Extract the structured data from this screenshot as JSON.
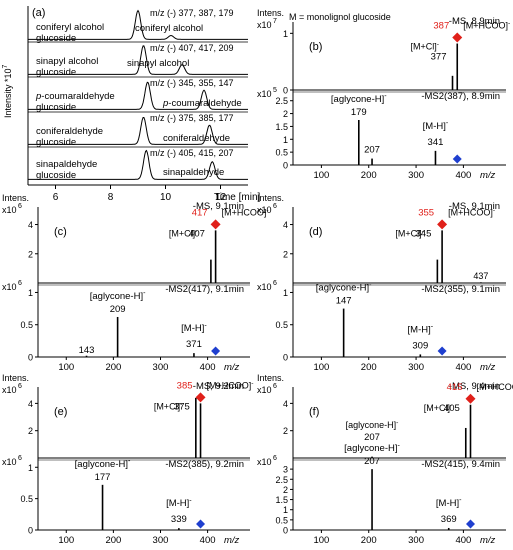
{
  "chart_data": [
    {
      "panel": "(a)",
      "type": "line",
      "ylabel": "Intensity *10",
      "ylabel_exp": "7",
      "xlabel": "Time [min]",
      "xticks": [
        6,
        8,
        10,
        12
      ],
      "xlim": [
        5,
        13
      ],
      "traces": [
        {
          "mz": "m/z (-) 377, 387, 179",
          "labels": [
            "coniferyl alcohol",
            "glucoside",
            "coniferyl alcohol"
          ],
          "peaks": [
            {
              "x": 9.0,
              "h": 0.9
            },
            {
              "x": 10.2,
              "h": 0.12
            }
          ]
        },
        {
          "mz": "m/z (-) 407, 417, 209",
          "labels": [
            "sinapyl alcohol",
            "glucoside",
            "sinapyl alcohol"
          ],
          "peaks": [
            {
              "x": 9.2,
              "h": 0.9
            },
            {
              "x": 10.6,
              "h": 0.3
            }
          ]
        },
        {
          "mz": "m/z (-) 345, 355, 147",
          "labels": [
            "p-coumaraldehyde",
            "glucoside",
            "p-coumaraldehyde"
          ],
          "peaks": [
            {
              "x": 9.35,
              "h": 0.85
            },
            {
              "x": 11.4,
              "h": 0.6
            }
          ]
        },
        {
          "mz": "m/z (-) 375, 385, 177",
          "labels": [
            "coniferaldehyde",
            "glucoside",
            "coniferaldehyde"
          ],
          "peaks": [
            {
              "x": 9.2,
              "h": 0.85
            },
            {
              "x": 11.6,
              "h": 0.6
            }
          ]
        },
        {
          "mz": "m/z (-) 405, 415, 207",
          "labels": [
            "sinapaldehyde",
            "glucoside",
            "sinapaldehyde"
          ],
          "peaks": [
            {
              "x": 9.3,
              "h": 0.9
            },
            {
              "x": 11.7,
              "h": 0.55
            }
          ]
        }
      ]
    },
    {
      "panel": "(b)",
      "type": "bar",
      "note": "M = monolignol  glucoside",
      "intens_label": "Intens.",
      "ms_label": "-MS, 8.9min",
      "ms_exp": "7",
      "ms_yticks": [
        0,
        1
      ],
      "ms_ylim": [
        0,
        1.2
      ],
      "ms_peaks": [
        {
          "x": 377,
          "y": 0.25
        },
        {
          "x": 387,
          "y": 0.82
        }
      ],
      "ms_labels": {
        "mcl": "[M+Cl]-",
        "mcl_mz": "377",
        "mhcoo": "[M+HCOO]-",
        "mhcoo_mz": "387"
      },
      "ms2_label": "-MS2(387), 8.9min",
      "ms2_exp": "5",
      "ms2_yticks": [
        0,
        0.5,
        1,
        1.5,
        2,
        2.5
      ],
      "ms2_ylim": [
        0,
        2.8
      ],
      "ms2_peaks": [
        {
          "x": 179,
          "y": 1.75
        },
        {
          "x": 207,
          "y": 0.25
        },
        {
          "x": 341,
          "y": 0.55
        }
      ],
      "ms2_labels": [
        {
          "text": "[aglycone-H]-",
          "at": 179
        },
        {
          "text": "179",
          "at": 179
        },
        {
          "text": "207",
          "at": 207
        },
        {
          "text": "[M-H]-",
          "at": 341
        },
        {
          "text": "341",
          "at": 341
        }
      ],
      "precursor": 387,
      "xticks": [
        100,
        200,
        300,
        400
      ],
      "xlim": [
        40,
        490
      ],
      "xlabel": "m/z"
    },
    {
      "panel": "(c)",
      "type": "bar",
      "intens_label": "Intens.",
      "ms_label": "-MS, 9.1min",
      "ms_exp": "6",
      "ms_yticks": [
        2,
        4
      ],
      "ms_ylim": [
        0,
        5.2
      ],
      "ms_peaks": [
        {
          "x": 407,
          "y": 1.6
        },
        {
          "x": 417,
          "y": 3.6
        }
      ],
      "ms_labels": {
        "mcl": "[M+Cl]-",
        "mcl_mz": "407",
        "mhcoo": "[M+HCOO]-",
        "mhcoo_mz": "417"
      },
      "ms2_label": "-MS2(417), 9.1min",
      "ms2_exp": "6",
      "ms2_yticks": [
        0,
        0.5,
        1
      ],
      "ms2_ylim": [
        0,
        1.1
      ],
      "ms2_peaks": [
        {
          "x": 143,
          "y": 0.02
        },
        {
          "x": 209,
          "y": 0.62
        },
        {
          "x": 371,
          "y": 0.06
        }
      ],
      "ms2_labels": [
        {
          "text": "[aglycone-H]-",
          "at": 209
        },
        {
          "text": "209",
          "at": 209
        },
        {
          "text": "143",
          "at": 143
        },
        {
          "text": "[M-H]-",
          "at": 371
        },
        {
          "text": "371",
          "at": 371
        }
      ],
      "precursor": 417,
      "xticks": [
        100,
        200,
        300,
        400
      ],
      "xlim": [
        40,
        490
      ],
      "xlabel": "m/z"
    },
    {
      "panel": "(d)",
      "type": "bar",
      "intens_label": "Intens.",
      "ms_label": "-MS, 9.1min",
      "ms_exp": "6",
      "ms_yticks": [
        2,
        4
      ],
      "ms_ylim": [
        0,
        5.2
      ],
      "ms_peaks": [
        {
          "x": 345,
          "y": 1.6
        },
        {
          "x": 355,
          "y": 3.6
        },
        {
          "x": 437,
          "y": 0.05
        }
      ],
      "ms_labels": {
        "mcl": "[M+Cl]-",
        "mcl_mz": "345",
        "mhcoo": "[M+HCOO]-",
        "mhcoo_mz": "355",
        "extra": "437"
      },
      "ms2_label": "-MS2(355), 9.1min",
      "ms2_exp": "6",
      "ms2_yticks": [
        0,
        0.5,
        1
      ],
      "ms2_ylim": [
        0,
        1.1
      ],
      "ms2_peaks": [
        {
          "x": 147,
          "y": 0.75
        },
        {
          "x": 309,
          "y": 0.04
        }
      ],
      "ms2_labels": [
        {
          "text": "[aglycone-H]-",
          "at": 147
        },
        {
          "text": "147",
          "at": 147
        },
        {
          "text": "[M-H]-",
          "at": 309
        },
        {
          "text": "309",
          "at": 309
        }
      ],
      "precursor": 355,
      "xticks": [
        100,
        200,
        300,
        400
      ],
      "xlim": [
        40,
        490
      ],
      "xlabel": "m/z"
    },
    {
      "panel": "(e)",
      "type": "bar",
      "intens_label": "Intens.",
      "ms_label": "-MS, 9.2min",
      "ms_exp": "6",
      "ms_yticks": [
        2,
        4
      ],
      "ms_ylim": [
        0,
        5.2
      ],
      "ms_peaks": [
        {
          "x": 375,
          "y": 4.4
        },
        {
          "x": 385,
          "y": 4.0
        }
      ],
      "ms_labels": {
        "mcl": "[M+Cl]-",
        "mcl_mz": "375",
        "mhcoo": "[M+HCOO]-",
        "mhcoo_mz": "385"
      },
      "ms2_label": "-MS2(385), 9.2min",
      "ms2_exp": "6",
      "ms2_yticks": [
        0,
        0.5,
        1
      ],
      "ms2_ylim": [
        0,
        1.1
      ],
      "ms2_peaks": [
        {
          "x": 177,
          "y": 0.72
        },
        {
          "x": 339,
          "y": 0.03
        }
      ],
      "ms2_labels": [
        {
          "text": "[aglycone-H]-",
          "at": 177
        },
        {
          "text": "177",
          "at": 177
        },
        {
          "text": "[M-H]-",
          "at": 339
        },
        {
          "text": "339",
          "at": 339
        }
      ],
      "precursor": 385,
      "xticks": [
        100,
        200,
        300,
        400
      ],
      "xlim": [
        40,
        490
      ],
      "xlabel": "m/z"
    },
    {
      "panel": "(f)",
      "type": "bar",
      "intens_label": "Intens.",
      "ms_label": "-MS, 9.4min",
      "ms_exp": "6",
      "ms_yticks": [
        2,
        4
      ],
      "ms_ylim": [
        0,
        5.2
      ],
      "ms_peaks": [
        {
          "x": 207,
          "y": 0.1
        },
        {
          "x": 405,
          "y": 2.2
        },
        {
          "x": 415,
          "y": 3.9
        }
      ],
      "ms_labels": {
        "mcl": "[M+Cl]-",
        "mcl_mz": "405",
        "mhcoo": "[M+HCOO]-",
        "mhcoo_mz": "415",
        "aglycone": "[aglycone-H]-",
        "aglycone_mz": "207"
      },
      "ms2_label": "-MS2(415), 9.4min",
      "ms2_exp": "6",
      "ms2_yticks": [
        0,
        0.5,
        1,
        1.5,
        2,
        2.5,
        3
      ],
      "ms2_ylim": [
        0,
        3.4
      ],
      "ms2_peaks": [
        {
          "x": 207,
          "y": 3.0
        },
        {
          "x": 369,
          "y": 0.1
        }
      ],
      "ms2_labels": [
        {
          "text": "[aglycone-H]-",
          "at": 207
        },
        {
          "text": "207",
          "at": 207
        },
        {
          "text": "[M-H]-",
          "at": 369
        },
        {
          "text": "369",
          "at": 369
        }
      ],
      "precursor": 415,
      "xticks": [
        100,
        200,
        300,
        400
      ],
      "xlim": [
        40,
        490
      ],
      "xlabel": "m/z"
    }
  ],
  "colors": {
    "line": "#000000",
    "precursor_marker": "#e0201a",
    "precursor_label": "#e0201a",
    "ms2_marker": "#1f3fcf"
  }
}
